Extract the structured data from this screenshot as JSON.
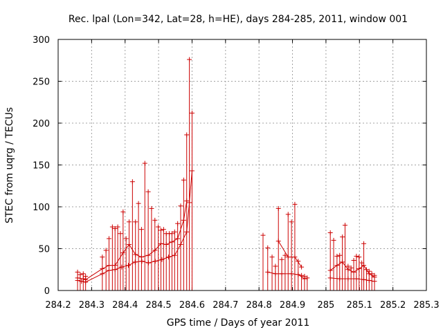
{
  "chart_data": {
    "type": "scatter",
    "title": "Rec. lpal (Lon=342, Lat=28, h=HE), days 284-285, 2011, window 001",
    "xlabel": "GPS time / Days of year 2011",
    "ylabel": "STEC from uqrg / TECUs",
    "xlim": [
      284.2,
      285.3
    ],
    "ylim": [
      0,
      300
    ],
    "xticks": [
      284.2,
      284.3,
      284.4,
      284.5,
      284.6,
      284.7,
      284.8,
      284.9,
      285,
      285.1,
      285.2,
      285.3
    ],
    "xtick_labels": [
      "284.2",
      "284.3",
      "284.4",
      "284.5",
      "284.6",
      "284.7",
      "284.8",
      "284.9",
      "285",
      "285.1",
      "285.2",
      "285.3"
    ],
    "yticks": [
      0,
      50,
      100,
      150,
      200,
      250,
      300
    ],
    "ytick_labels": [
      "0",
      "50",
      "100",
      "150",
      "200",
      "250",
      "300"
    ],
    "grid": true,
    "marker": "plus",
    "color": "#cc0000",
    "series": [
      {
        "style": "vertical-bars",
        "points": [
          [
            284.258,
            22
          ],
          [
            284.266,
            19
          ],
          [
            284.275,
            20
          ],
          [
            284.282,
            17
          ],
          [
            284.332,
            40
          ],
          [
            284.343,
            48
          ],
          [
            284.352,
            62
          ],
          [
            284.362,
            76
          ],
          [
            284.37,
            74
          ],
          [
            284.378,
            76
          ],
          [
            284.386,
            68
          ],
          [
            284.394,
            94
          ],
          [
            284.403,
            62
          ],
          [
            284.412,
            82
          ],
          [
            284.422,
            130
          ],
          [
            284.431,
            82
          ],
          [
            284.44,
            104
          ],
          [
            284.449,
            73
          ],
          [
            284.459,
            152
          ],
          [
            284.469,
            118
          ],
          [
            284.479,
            98
          ],
          [
            284.489,
            84
          ],
          [
            284.499,
            76
          ],
          [
            284.507,
            72
          ],
          [
            284.515,
            73
          ],
          [
            284.523,
            68
          ],
          [
            284.532,
            68
          ],
          [
            284.54,
            68
          ],
          [
            284.548,
            70
          ],
          [
            284.557,
            80
          ],
          [
            284.566,
            101
          ],
          [
            284.575,
            132
          ],
          [
            284.584,
            186
          ],
          [
            284.592,
            276
          ],
          [
            284.6,
            212
          ],
          [
            284.812,
            66
          ],
          [
            284.826,
            51
          ],
          [
            284.839,
            40
          ],
          [
            284.849,
            29
          ],
          [
            284.858,
            98
          ],
          [
            284.868,
            37
          ],
          [
            284.878,
            42
          ],
          [
            284.887,
            91
          ],
          [
            284.897,
            82
          ],
          [
            284.907,
            103
          ],
          [
            284.917,
            35
          ],
          [
            284.927,
            18
          ],
          [
            284.936,
            17
          ],
          [
            284.944,
            15
          ],
          [
            285.013,
            69
          ],
          [
            285.023,
            60
          ],
          [
            285.033,
            41
          ],
          [
            285.041,
            42
          ],
          [
            285.049,
            64
          ],
          [
            285.057,
            78
          ],
          [
            285.066,
            29
          ],
          [
            285.075,
            27
          ],
          [
            285.083,
            36
          ],
          [
            285.091,
            41
          ],
          [
            285.099,
            40
          ],
          [
            285.107,
            33
          ],
          [
            285.113,
            56
          ],
          [
            285.121,
            25
          ],
          [
            285.129,
            23
          ],
          [
            285.137,
            20
          ],
          [
            285.145,
            18
          ]
        ]
      },
      {
        "style": "floor",
        "points": [
          [
            284.258,
            12
          ],
          [
            284.27,
            11
          ],
          [
            284.282,
            10
          ],
          [
            284.332,
            20
          ],
          [
            284.352,
            24
          ],
          [
            284.37,
            25
          ],
          [
            284.39,
            28
          ],
          [
            284.41,
            30
          ],
          [
            284.43,
            34
          ],
          [
            284.45,
            35
          ],
          [
            284.47,
            33
          ],
          [
            284.49,
            35
          ],
          [
            284.51,
            37
          ],
          [
            284.53,
            40
          ],
          [
            284.548,
            42
          ],
          [
            284.566,
            55
          ],
          [
            284.584,
            70
          ],
          [
            284.592,
            105
          ],
          [
            284.6,
            143
          ],
          [
            284.826,
            22
          ],
          [
            284.849,
            20
          ],
          [
            284.868,
            20
          ],
          [
            284.897,
            20
          ],
          [
            284.917,
            19
          ],
          [
            284.936,
            14
          ],
          [
            285.013,
            15
          ],
          [
            285.041,
            14
          ],
          [
            285.066,
            14
          ],
          [
            285.091,
            14
          ],
          [
            285.113,
            13
          ],
          [
            285.129,
            12
          ],
          [
            285.145,
            11
          ]
        ]
      },
      {
        "style": "mid",
        "points": [
          [
            284.258,
            15
          ],
          [
            284.275,
            14
          ],
          [
            284.282,
            13
          ],
          [
            284.332,
            26
          ],
          [
            284.352,
            30
          ],
          [
            284.37,
            30
          ],
          [
            284.394,
            45
          ],
          [
            284.412,
            55
          ],
          [
            284.431,
            43
          ],
          [
            284.449,
            40
          ],
          [
            284.469,
            42
          ],
          [
            284.489,
            48
          ],
          [
            284.507,
            56
          ],
          [
            284.523,
            55
          ],
          [
            284.54,
            58
          ],
          [
            284.557,
            62
          ],
          [
            284.575,
            84
          ],
          [
            284.584,
            107
          ],
          [
            284.858,
            59
          ],
          [
            284.887,
            40
          ],
          [
            284.907,
            40
          ],
          [
            284.927,
            28
          ],
          [
            285.013,
            24
          ],
          [
            285.033,
            30
          ],
          [
            285.049,
            34
          ],
          [
            285.066,
            25
          ],
          [
            285.083,
            22
          ],
          [
            285.099,
            26
          ],
          [
            285.113,
            30
          ],
          [
            285.129,
            20
          ],
          [
            285.145,
            16
          ]
        ]
      }
    ]
  }
}
